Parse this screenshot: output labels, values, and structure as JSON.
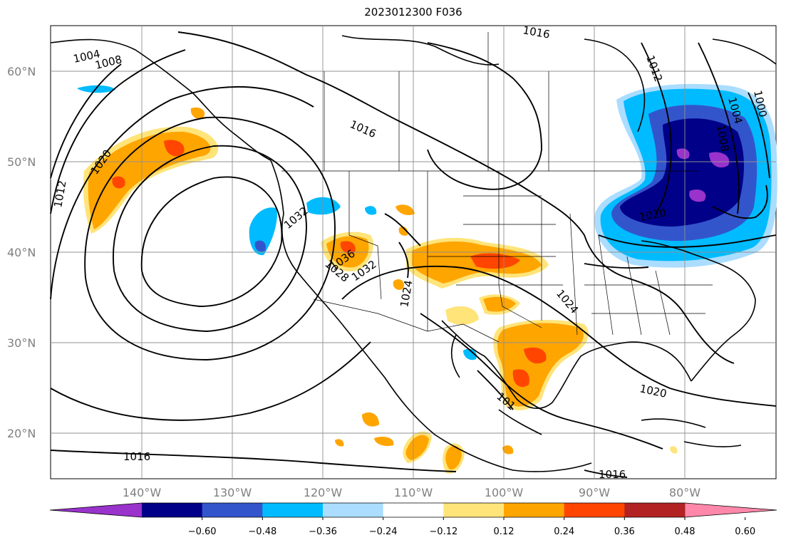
{
  "title": "2023012300 F036",
  "lat_labels": [
    "60°N",
    "50°N",
    "40°N",
    "30°N",
    "20°N"
  ],
  "lon_labels": [
    "140°W",
    "130°W",
    "120°W",
    "110°W",
    "100°W",
    "90°W",
    "80°W"
  ],
  "contour_labels": [
    "1004",
    "1008",
    "1012",
    "1020",
    "1016",
    "1016",
    "1016",
    "1012",
    "1004",
    "1000",
    "1008",
    "1032",
    "1036",
    "1032",
    "1028",
    "1024",
    "1024",
    "1020",
    "1020",
    "101",
    "1016"
  ],
  "colorbar": {
    "ticks": [
      "−0.60",
      "−0.48",
      "−0.36",
      "−0.24",
      "−0.12",
      "0.12",
      "0.24",
      "0.36",
      "0.48",
      "0.60"
    ],
    "colors": [
      "#9933cc",
      "#000088",
      "#3355cc",
      "#00bbff",
      "#aaddff",
      "#ffffff",
      "#ffe47a",
      "#ffa500",
      "#ff4500",
      "#b22222",
      "#ff88aa"
    ]
  }
}
